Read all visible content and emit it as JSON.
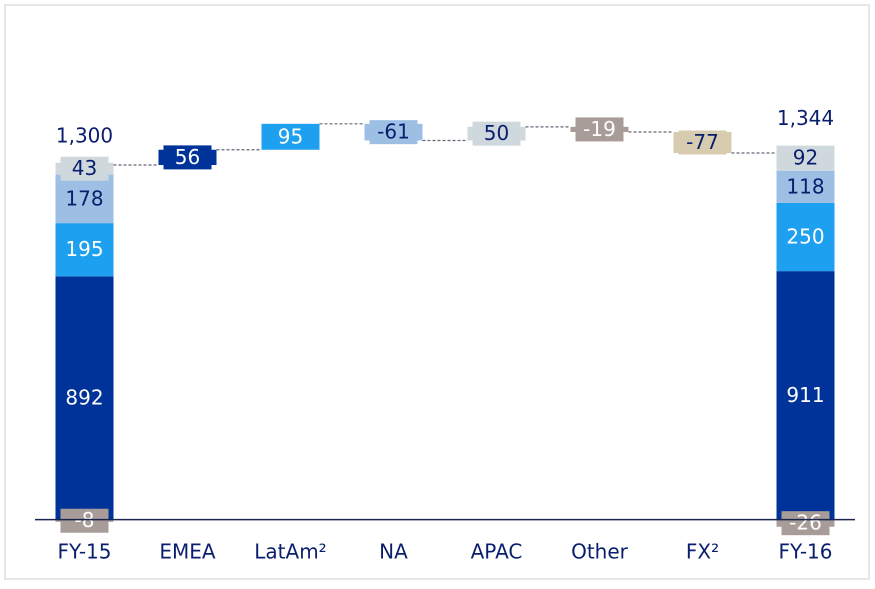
{
  "chart_data": {
    "type": "waterfall",
    "categories": [
      "FY-15",
      "EMEA",
      "LatAm²",
      "NA",
      "APAC",
      "Other",
      "FX²",
      "FY-16"
    ],
    "series": [
      {
        "color": "#003399",
        "values": [
          892,
          null,
          null,
          null,
          null,
          null,
          null,
          911
        ]
      },
      {
        "color": "#1ea0f0",
        "values": [
          195,
          null,
          null,
          null,
          null,
          null,
          null,
          250
        ]
      },
      {
        "color": "#9dbfe3",
        "values": [
          178,
          null,
          null,
          null,
          null,
          null,
          null,
          118
        ]
      },
      {
        "color": "#cfd8dc",
        "values": [
          43,
          null,
          null,
          null,
          null,
          null,
          null,
          92
        ]
      },
      {
        "color": "#a89c98",
        "values": [
          -8,
          null,
          null,
          null,
          null,
          null,
          null,
          -26
        ]
      }
    ],
    "deltas": {
      "values": [
        null,
        56,
        95,
        -61,
        50,
        -19,
        -77,
        null
      ],
      "colors": [
        null,
        "#003399",
        "#1ea0f0",
        "#9dbfe3",
        "#cfd8dc",
        "#a89c98",
        "#d8ccb0",
        null
      ]
    },
    "totals": {
      "values": [
        1300,
        null,
        null,
        null,
        null,
        null,
        null,
        1344
      ],
      "value_labels": [
        "1,300",
        null,
        null,
        null,
        null,
        null,
        null,
        "1,344"
      ]
    },
    "ylim": [
      -60,
      1850
    ]
  }
}
